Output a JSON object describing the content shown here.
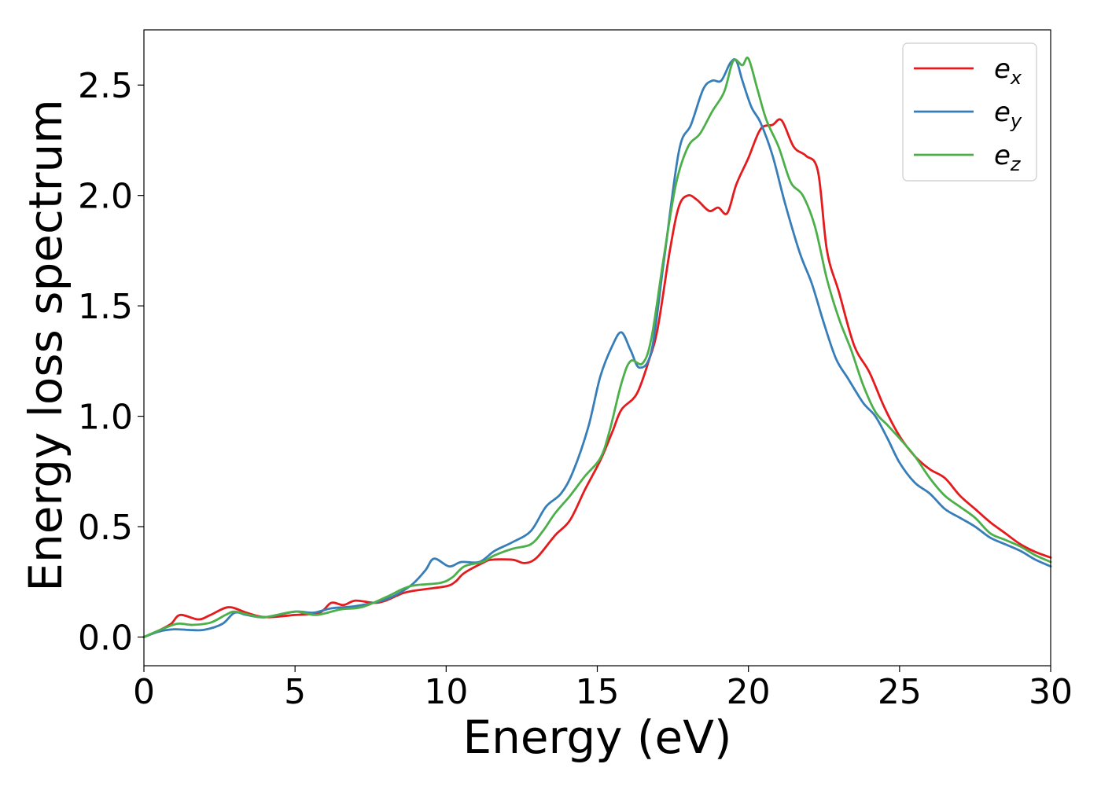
{
  "chart_data": {
    "type": "line",
    "title": "",
    "xlabel": "Energy (eV)",
    "ylabel": "Energy loss spectrum",
    "xlim": [
      0,
      30
    ],
    "ylim": [
      -0.13,
      2.75
    ],
    "x_ticks": [
      "0",
      "5",
      "10",
      "15",
      "20",
      "25",
      "30"
    ],
    "y_ticks": [
      "0.0",
      "0.5",
      "1.0",
      "1.5",
      "2.0",
      "2.5"
    ],
    "legend_position": "top-right",
    "grid": false,
    "series": [
      {
        "name": "e_x",
        "label_base": "e",
        "label_sub": "x",
        "color": "#e41a1c",
        "points": [
          [
            0,
            0
          ],
          [
            0.5,
            0.03
          ],
          [
            0.9,
            0.06
          ],
          [
            1.2,
            0.1
          ],
          [
            1.8,
            0.08
          ],
          [
            2.2,
            0.1
          ],
          [
            2.8,
            0.135
          ],
          [
            3.4,
            0.11
          ],
          [
            4.0,
            0.09
          ],
          [
            5.0,
            0.1
          ],
          [
            5.8,
            0.11
          ],
          [
            6.2,
            0.155
          ],
          [
            6.6,
            0.145
          ],
          [
            7.0,
            0.165
          ],
          [
            7.6,
            0.155
          ],
          [
            8.0,
            0.165
          ],
          [
            8.6,
            0.2
          ],
          [
            9.2,
            0.215
          ],
          [
            10.0,
            0.23
          ],
          [
            10.3,
            0.25
          ],
          [
            10.6,
            0.29
          ],
          [
            11.2,
            0.335
          ],
          [
            11.5,
            0.35
          ],
          [
            12.2,
            0.35
          ],
          [
            12.6,
            0.335
          ],
          [
            13.0,
            0.36
          ],
          [
            13.6,
            0.46
          ],
          [
            14.1,
            0.53
          ],
          [
            14.6,
            0.67
          ],
          [
            15.1,
            0.8
          ],
          [
            15.5,
            0.93
          ],
          [
            15.8,
            1.03
          ],
          [
            16.3,
            1.1
          ],
          [
            16.7,
            1.25
          ],
          [
            17.0,
            1.4
          ],
          [
            17.4,
            1.75
          ],
          [
            17.7,
            1.95
          ],
          [
            18.0,
            2.0
          ],
          [
            18.3,
            1.98
          ],
          [
            18.7,
            1.93
          ],
          [
            19.0,
            1.945
          ],
          [
            19.3,
            1.92
          ],
          [
            19.6,
            2.05
          ],
          [
            20.0,
            2.17
          ],
          [
            20.4,
            2.3
          ],
          [
            20.8,
            2.32
          ],
          [
            21.1,
            2.34
          ],
          [
            21.5,
            2.22
          ],
          [
            21.9,
            2.18
          ],
          [
            22.3,
            2.11
          ],
          [
            22.6,
            1.75
          ],
          [
            23.0,
            1.56
          ],
          [
            23.5,
            1.32
          ],
          [
            24.0,
            1.2
          ],
          [
            24.5,
            1.04
          ],
          [
            25.0,
            0.91
          ],
          [
            25.5,
            0.82
          ],
          [
            26.0,
            0.76
          ],
          [
            26.5,
            0.72
          ],
          [
            27.0,
            0.64
          ],
          [
            27.5,
            0.58
          ],
          [
            28.0,
            0.52
          ],
          [
            28.5,
            0.47
          ],
          [
            29.0,
            0.42
          ],
          [
            29.5,
            0.385
          ],
          [
            30.0,
            0.36
          ]
        ]
      },
      {
        "name": "e_y",
        "label_base": "e",
        "label_sub": "y",
        "color": "#377eb8",
        "points": [
          [
            0,
            0
          ],
          [
            0.5,
            0.025
          ],
          [
            1.0,
            0.035
          ],
          [
            1.5,
            0.032
          ],
          [
            2.0,
            0.033
          ],
          [
            2.6,
            0.06
          ],
          [
            3.0,
            0.11
          ],
          [
            3.4,
            0.1
          ],
          [
            4.0,
            0.09
          ],
          [
            5.0,
            0.115
          ],
          [
            5.6,
            0.11
          ],
          [
            6.2,
            0.13
          ],
          [
            7.0,
            0.14
          ],
          [
            8.0,
            0.17
          ],
          [
            8.8,
            0.23
          ],
          [
            9.3,
            0.3
          ],
          [
            9.6,
            0.355
          ],
          [
            10.1,
            0.32
          ],
          [
            10.5,
            0.34
          ],
          [
            11.1,
            0.34
          ],
          [
            11.6,
            0.39
          ],
          [
            12.2,
            0.43
          ],
          [
            12.8,
            0.48
          ],
          [
            13.3,
            0.59
          ],
          [
            13.8,
            0.65
          ],
          [
            14.2,
            0.75
          ],
          [
            14.7,
            0.95
          ],
          [
            15.1,
            1.18
          ],
          [
            15.5,
            1.32
          ],
          [
            15.8,
            1.38
          ],
          [
            16.1,
            1.3
          ],
          [
            16.4,
            1.22
          ],
          [
            16.8,
            1.3
          ],
          [
            17.2,
            1.7
          ],
          [
            17.7,
            2.2
          ],
          [
            18.1,
            2.32
          ],
          [
            18.5,
            2.48
          ],
          [
            18.8,
            2.52
          ],
          [
            19.1,
            2.52
          ],
          [
            19.4,
            2.6
          ],
          [
            19.6,
            2.61
          ],
          [
            19.8,
            2.52
          ],
          [
            20.1,
            2.4
          ],
          [
            20.4,
            2.33
          ],
          [
            20.8,
            2.18
          ],
          [
            21.2,
            1.97
          ],
          [
            21.7,
            1.74
          ],
          [
            22.1,
            1.6
          ],
          [
            22.5,
            1.42
          ],
          [
            22.9,
            1.26
          ],
          [
            23.3,
            1.17
          ],
          [
            23.8,
            1.06
          ],
          [
            24.2,
            1.0
          ],
          [
            24.6,
            0.9
          ],
          [
            25.0,
            0.79
          ],
          [
            25.5,
            0.7
          ],
          [
            26.0,
            0.65
          ],
          [
            26.5,
            0.58
          ],
          [
            27.0,
            0.54
          ],
          [
            27.5,
            0.5
          ],
          [
            28.0,
            0.45
          ],
          [
            28.5,
            0.42
          ],
          [
            29.0,
            0.39
          ],
          [
            29.5,
            0.35
          ],
          [
            30.0,
            0.32
          ]
        ]
      },
      {
        "name": "e_z",
        "label_base": "e",
        "label_sub": "z",
        "color": "#4daf4a",
        "points": [
          [
            0,
            0
          ],
          [
            0.5,
            0.03
          ],
          [
            1.1,
            0.06
          ],
          [
            1.6,
            0.055
          ],
          [
            2.2,
            0.065
          ],
          [
            2.7,
            0.1
          ],
          [
            3.0,
            0.115
          ],
          [
            3.5,
            0.1
          ],
          [
            4.0,
            0.09
          ],
          [
            5.0,
            0.115
          ],
          [
            5.7,
            0.1
          ],
          [
            6.5,
            0.125
          ],
          [
            7.2,
            0.135
          ],
          [
            8.0,
            0.18
          ],
          [
            8.6,
            0.22
          ],
          [
            9.0,
            0.235
          ],
          [
            9.8,
            0.245
          ],
          [
            10.2,
            0.27
          ],
          [
            10.6,
            0.32
          ],
          [
            11.2,
            0.34
          ],
          [
            11.6,
            0.37
          ],
          [
            12.2,
            0.4
          ],
          [
            12.8,
            0.42
          ],
          [
            13.2,
            0.48
          ],
          [
            13.6,
            0.56
          ],
          [
            14.1,
            0.64
          ],
          [
            14.6,
            0.73
          ],
          [
            15.1,
            0.81
          ],
          [
            15.4,
            0.93
          ],
          [
            15.8,
            1.15
          ],
          [
            16.1,
            1.25
          ],
          [
            16.5,
            1.24
          ],
          [
            16.8,
            1.36
          ],
          [
            17.2,
            1.72
          ],
          [
            17.6,
            2.05
          ],
          [
            18.0,
            2.22
          ],
          [
            18.4,
            2.28
          ],
          [
            18.8,
            2.38
          ],
          [
            19.2,
            2.47
          ],
          [
            19.5,
            2.61
          ],
          [
            19.8,
            2.59
          ],
          [
            20.0,
            2.62
          ],
          [
            20.3,
            2.48
          ],
          [
            20.6,
            2.34
          ],
          [
            21.0,
            2.22
          ],
          [
            21.4,
            2.06
          ],
          [
            21.8,
            2.0
          ],
          [
            22.2,
            1.86
          ],
          [
            22.6,
            1.62
          ],
          [
            23.0,
            1.44
          ],
          [
            23.4,
            1.3
          ],
          [
            23.8,
            1.14
          ],
          [
            24.2,
            1.02
          ],
          [
            24.6,
            0.96
          ],
          [
            25.0,
            0.9
          ],
          [
            25.5,
            0.82
          ],
          [
            26.0,
            0.72
          ],
          [
            26.5,
            0.64
          ],
          [
            27.0,
            0.59
          ],
          [
            27.5,
            0.54
          ],
          [
            28.0,
            0.47
          ],
          [
            28.5,
            0.44
          ],
          [
            29.0,
            0.41
          ],
          [
            29.5,
            0.37
          ],
          [
            30.0,
            0.34
          ]
        ]
      }
    ]
  }
}
